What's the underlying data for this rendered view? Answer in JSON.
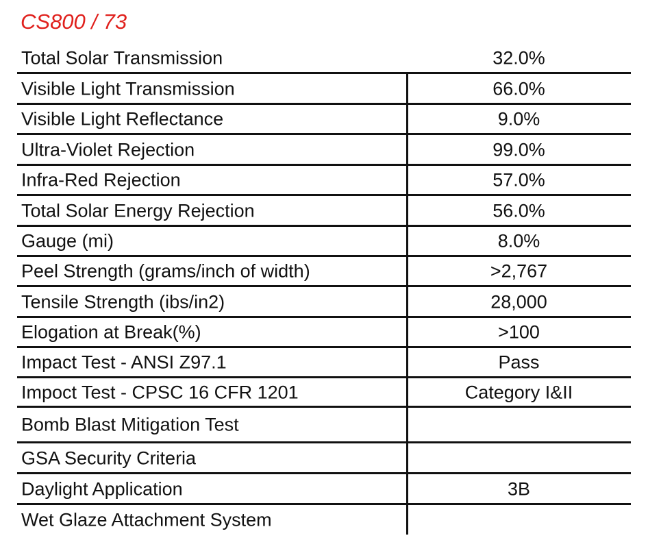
{
  "header": {
    "title": "CS800 / 73"
  },
  "table": {
    "rows": [
      [
        "Total Solar Transmission",
        "32.0%"
      ],
      [
        "Visible Light Transmission",
        "66.0%"
      ],
      [
        "Visible Light Reflectance",
        "9.0%"
      ],
      [
        "Ultra-Violet Rejection",
        "99.0%"
      ],
      [
        "Infra-Red Rejection",
        "57.0%"
      ],
      [
        "Total Solar Energy Rejection",
        "56.0%"
      ],
      [
        "Gauge (mi)",
        "8.0%"
      ],
      [
        "Peel Strength (grams/inch of width)",
        ">2,767"
      ],
      [
        "Tensile Strength (ibs/in2)",
        "28,000"
      ],
      [
        "Elogation at Break(%)",
        ">100"
      ],
      [
        "Impact Test - ANSI Z97.1",
        "Pass"
      ],
      [
        "Impoct Test - CPSC 16 CFR 1201",
        "Category I&II"
      ],
      [
        "Bomb Blast Mitigation Test"
      ],
      [
        "GSA Security Criteria"
      ],
      [
        "Daylight Application",
        "3B"
      ],
      [
        "Wet Glaze Attachment System"
      ]
    ]
  }
}
